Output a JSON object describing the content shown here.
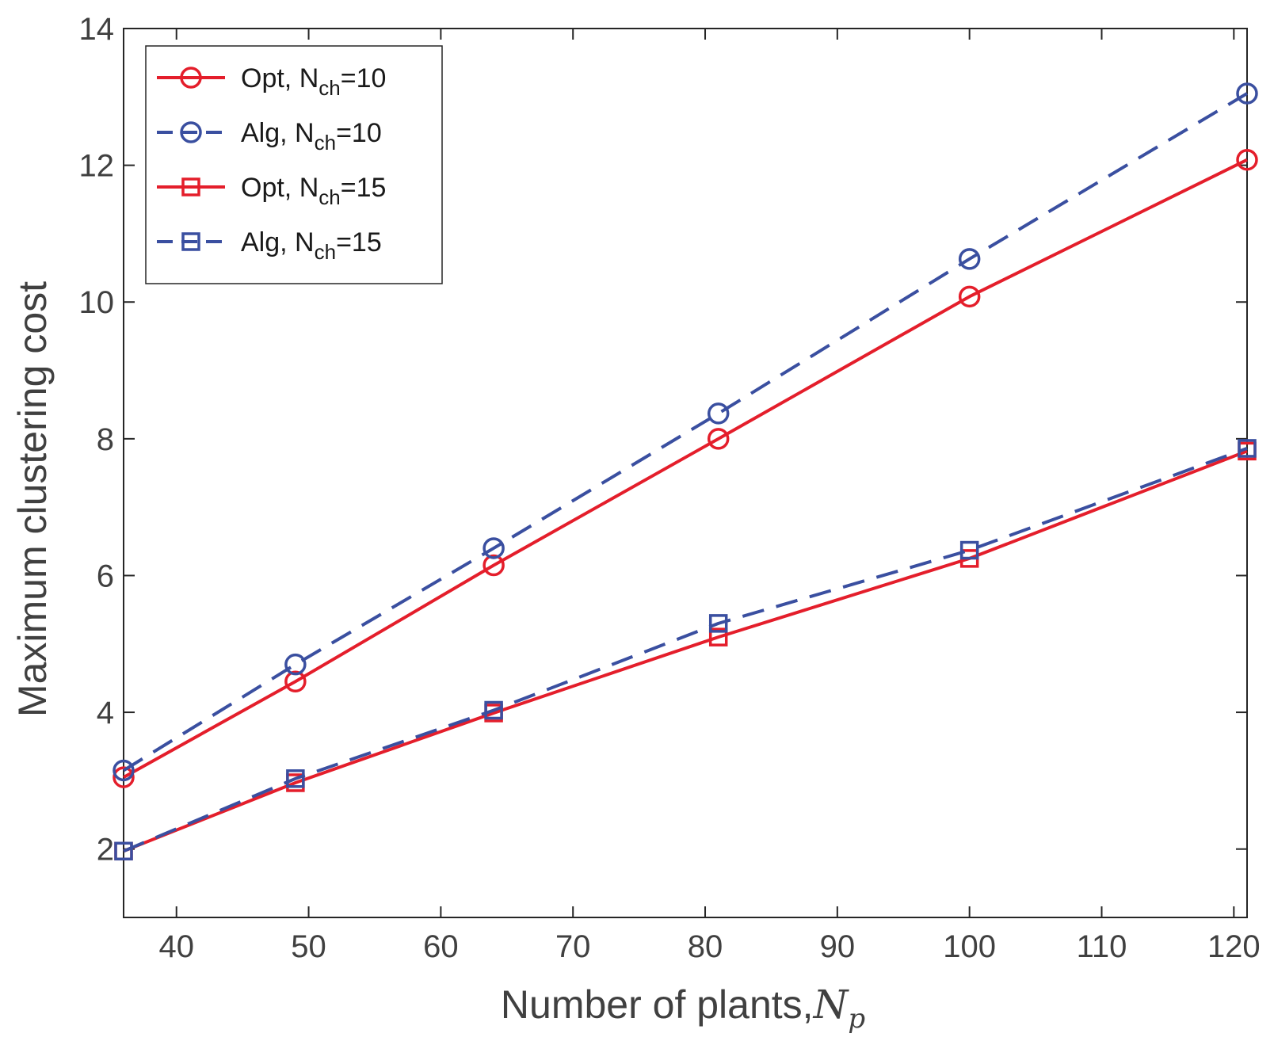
{
  "chart_data": {
    "type": "line",
    "title": "",
    "xlabel": "Number of plants,",
    "xlabel_symbol": "N",
    "xlabel_symbol_sub": "p",
    "ylabel": "Maximum clustering cost",
    "xlim": [
      36,
      121
    ],
    "ylim": [
      1,
      14
    ],
    "xticks": [
      40,
      50,
      60,
      70,
      80,
      90,
      100,
      110,
      120
    ],
    "yticks": [
      2,
      4,
      6,
      8,
      10,
      12,
      14
    ],
    "x": [
      36,
      49,
      64,
      81,
      100,
      121
    ],
    "grid": false,
    "legend_position": "top-left",
    "series": [
      {
        "name": "Opt, N",
        "sub": "ch",
        "suffix": "=10",
        "color": "#e41e2b",
        "dash": "solid",
        "marker": "circle",
        "values": [
          3.05,
          4.45,
          6.15,
          8.0,
          10.08,
          12.08
        ]
      },
      {
        "name": "Alg, N",
        "sub": "ch",
        "suffix": "=10",
        "color": "#3a4fa0",
        "dash": "dashed",
        "marker": "circle",
        "values": [
          3.15,
          4.7,
          6.4,
          8.37,
          10.63,
          13.05
        ]
      },
      {
        "name": "Opt, N",
        "sub": "ch",
        "suffix": "=15",
        "color": "#e41e2b",
        "dash": "solid",
        "marker": "square",
        "values": [
          1.97,
          2.97,
          3.99,
          5.1,
          6.25,
          7.82
        ]
      },
      {
        "name": "Alg, N",
        "sub": "ch",
        "suffix": "=15",
        "color": "#3a4fa0",
        "dash": "dashed",
        "marker": "square",
        "values": [
          1.97,
          3.03,
          4.03,
          5.3,
          6.37,
          7.86
        ]
      }
    ]
  }
}
